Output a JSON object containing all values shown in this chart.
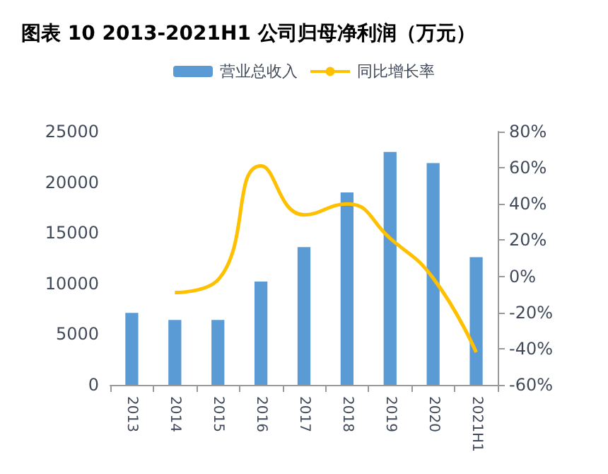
{
  "chart_data": {
    "type": "bar",
    "title": "图表 10 2013-2021H1 公司归母净利润（万元）",
    "categories": [
      "2013",
      "2014",
      "2015",
      "2016",
      "2017",
      "2018",
      "2019",
      "2020",
      "2021H1"
    ],
    "series": [
      {
        "name": "营业总收入",
        "color": "#5b9bd5",
        "values": [
          7100,
          6400,
          6400,
          10200,
          13600,
          19000,
          23000,
          21900,
          12600
        ]
      },
      {
        "name": "同比增长率",
        "type": "line",
        "axis": "y2",
        "color": "#ffc000",
        "values": [
          null,
          -9,
          -2,
          61,
          34,
          40,
          21,
          -1,
          -42
        ]
      }
    ],
    "ylim": [
      0,
      25000
    ],
    "yticks": [
      0,
      5000,
      10000,
      15000,
      20000,
      25000
    ],
    "y2lim": [
      -60,
      80
    ],
    "y2ticks": [
      {
        "value": -60,
        "label": "-60%"
      },
      {
        "value": -40,
        "label": "-40%"
      },
      {
        "value": -20,
        "label": "-20%"
      },
      {
        "value": 0,
        "label": "0%"
      },
      {
        "value": 20,
        "label": "20%"
      },
      {
        "value": 40,
        "label": "40%"
      },
      {
        "value": 60,
        "label": "60%"
      },
      {
        "value": 80,
        "label": "80%"
      }
    ],
    "grid": false,
    "legend": "top",
    "marker": "none"
  }
}
